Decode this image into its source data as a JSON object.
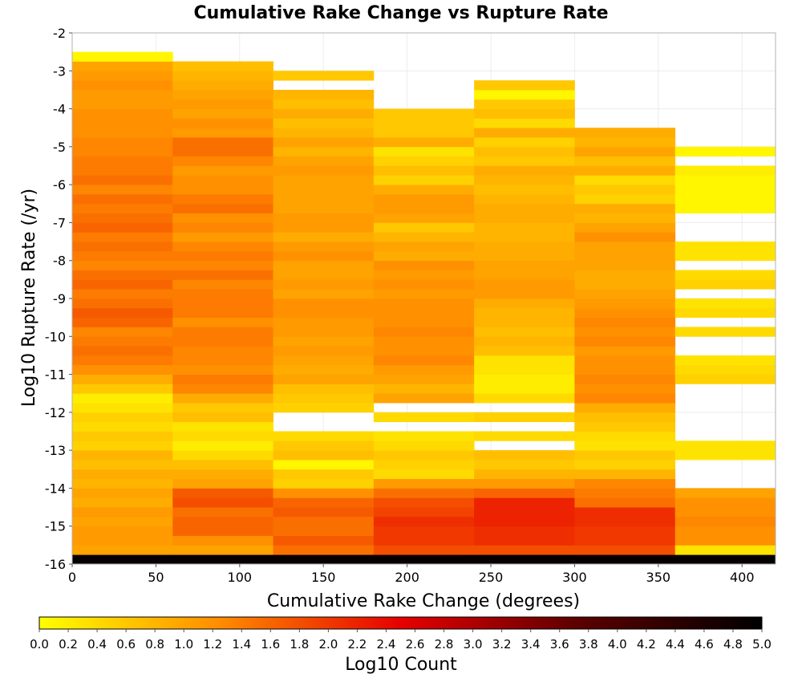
{
  "chart_data": {
    "type": "heatmap",
    "title": "Cumulative Rake Change vs Rupture Rate",
    "xlabel": "Cumulative Rake Change (degrees)",
    "ylabel": "Log10 Rupture Rate (/yr)",
    "xlim": [
      0,
      420
    ],
    "ylim": [
      -16,
      -2
    ],
    "x_ticks": [
      0,
      50,
      100,
      150,
      200,
      250,
      300,
      350,
      400
    ],
    "y_ticks": [
      -2,
      -3,
      -4,
      -5,
      -6,
      -7,
      -8,
      -9,
      -10,
      -11,
      -12,
      -13,
      -14,
      -15,
      -16
    ],
    "x_bin_edges": [
      0,
      60,
      120,
      180,
      240,
      300,
      360,
      420
    ],
    "y_bin_height": 0.25,
    "y_bin_start": -16,
    "grid": true,
    "colorbar": {
      "label": "Log10 Count",
      "range": [
        0,
        5
      ],
      "ticks": [
        "0.0",
        "0.2",
        "0.4",
        "0.6",
        "0.8",
        "1.0",
        "1.2",
        "1.4",
        "1.6",
        "1.8",
        "2.0",
        "2.2",
        "2.4",
        "2.6",
        "2.8",
        "3.0",
        "3.2",
        "3.4",
        "3.6",
        "3.8",
        "4.0",
        "4.2",
        "4.4",
        "4.6",
        "4.8",
        "5.0"
      ],
      "colors": [
        "#ffff00",
        "#ff8c00",
        "#e60000",
        "#5a0000",
        "#000000"
      ],
      "placement": "bottom"
    },
    "columns": [
      {
        "x_start": 0,
        "x_end": 60,
        "values": [
          4.9,
          1.0,
          1.1,
          1.1,
          1.0,
          1.1,
          0.9,
          1.0,
          0.8,
          0.9,
          0.7,
          0.8,
          0.5,
          0.6,
          0.4,
          0.5,
          0.3,
          0.2,
          0.6,
          0.9,
          1.2,
          1.4,
          1.5,
          1.4,
          1.3,
          1.6,
          1.7,
          1.5,
          1.4,
          1.6,
          1.5,
          1.3,
          1.4,
          1.5,
          1.4,
          1.6,
          1.5,
          1.4,
          1.5,
          1.3,
          1.5,
          1.4,
          1.4,
          1.3,
          1.3,
          1.2,
          1.2,
          1.2,
          1.1,
          1.1,
          1.2,
          1.1,
          1.0,
          0.1
        ]
      },
      {
        "x_start": 60,
        "x_end": 120,
        "values": [
          4.9,
          1.0,
          1.2,
          1.6,
          1.6,
          1.5,
          1.8,
          1.7,
          1.0,
          0.9,
          0.7,
          0.4,
          0.2,
          0.4,
          0.3,
          0.7,
          0.6,
          0.9,
          1.3,
          1.4,
          1.2,
          1.3,
          1.3,
          1.4,
          1.4,
          1.2,
          1.4,
          1.4,
          1.4,
          1.3,
          1.5,
          1.3,
          1.4,
          1.3,
          1.1,
          1.3,
          1.2,
          1.5,
          1.4,
          1.2,
          1.2,
          1.1,
          1.3,
          1.5,
          1.5,
          1.1,
          1.2,
          1.0,
          1.1,
          1.0,
          0.9,
          0.8,
          0.7
        ]
      },
      {
        "x_start": 120,
        "x_end": 180,
        "values": [
          4.9,
          1.5,
          1.7,
          1.5,
          1.5,
          1.7,
          1.6,
          1.2,
          0.5,
          0.6,
          0.1,
          0.7,
          0.6,
          0.4,
          null,
          null,
          0.5,
          0.6,
          0.7,
          1.0,
          0.9,
          1.0,
          1.1,
          1.0,
          1.1,
          1.1,
          1.2,
          1.2,
          1.0,
          1.1,
          1.0,
          1.0,
          1.2,
          1.1,
          0.9,
          1.1,
          1.1,
          1.0,
          1.0,
          1.0,
          1.0,
          1.1,
          1.0,
          0.8,
          1.0,
          0.8,
          0.7,
          0.9,
          0.7,
          0.8,
          null,
          0.6
        ]
      },
      {
        "x_start": 180,
        "x_end": 240,
        "values": [
          4.9,
          1.8,
          2.0,
          2.0,
          2.1,
          1.9,
          1.8,
          1.5,
          1.1,
          0.4,
          0.5,
          0.6,
          0.4,
          0.3,
          null,
          0.4,
          null,
          1.0,
          0.8,
          1.0,
          1.1,
          1.3,
          1.2,
          1.2,
          1.3,
          1.2,
          1.2,
          1.2,
          1.1,
          1.2,
          1.1,
          1.2,
          0.9,
          1.0,
          0.8,
          0.6,
          1.0,
          1.1,
          1.1,
          0.9,
          0.5,
          0.7,
          0.5,
          0.3,
          0.9,
          0.6,
          0.6,
          0.6
        ]
      },
      {
        "x_start": 240,
        "x_end": 300,
        "values": [
          4.9,
          1.8,
          2.1,
          2.1,
          2.2,
          2.2,
          2.2,
          1.6,
          1.1,
          0.8,
          0.6,
          0.7,
          null,
          0.4,
          null,
          0.5,
          null,
          0.4,
          0.2,
          0.2,
          0.3,
          0.3,
          0.7,
          0.8,
          0.7,
          0.8,
          0.8,
          0.9,
          1.1,
          1.1,
          1.0,
          1.0,
          0.9,
          0.9,
          0.8,
          0.8,
          0.9,
          0.9,
          0.8,
          0.7,
          0.8,
          0.9,
          0.6,
          0.7,
          0.5,
          0.9,
          0.4,
          0.7,
          0.6,
          0.1,
          0.6
        ]
      },
      {
        "x_start": 300,
        "x_end": 360,
        "values": [
          4.9,
          1.8,
          2.0,
          2.0,
          2.1,
          2.1,
          1.5,
          1.4,
          1.3,
          0.8,
          0.5,
          0.6,
          0.3,
          0.4,
          0.6,
          0.7,
          0.9,
          1.3,
          1.2,
          1.3,
          1.2,
          1.2,
          1.1,
          1.3,
          1.2,
          1.3,
          1.2,
          1.1,
          1.0,
          0.9,
          0.9,
          1.0,
          1.0,
          1.0,
          1.2,
          1.0,
          0.8,
          0.9,
          0.5,
          0.6,
          0.4,
          0.9,
          0.7,
          1.0,
          0.8,
          0.9
        ]
      },
      {
        "x_start": 360,
        "x_end": 420,
        "values": [
          4.9,
          0.3,
          1.2,
          1.2,
          1.3,
          1.2,
          1.2,
          1.0,
          null,
          null,
          null,
          0.3,
          0.3,
          null,
          null,
          null,
          null,
          null,
          null,
          0.5,
          0.4,
          0.3,
          null,
          null,
          0.4,
          null,
          0.4,
          0.3,
          null,
          0.5,
          0.4,
          null,
          0.3,
          0.3,
          null,
          null,
          null,
          0.1,
          0.1,
          0.1,
          0.1,
          0.2,
          null,
          0.1
        ]
      }
    ]
  }
}
